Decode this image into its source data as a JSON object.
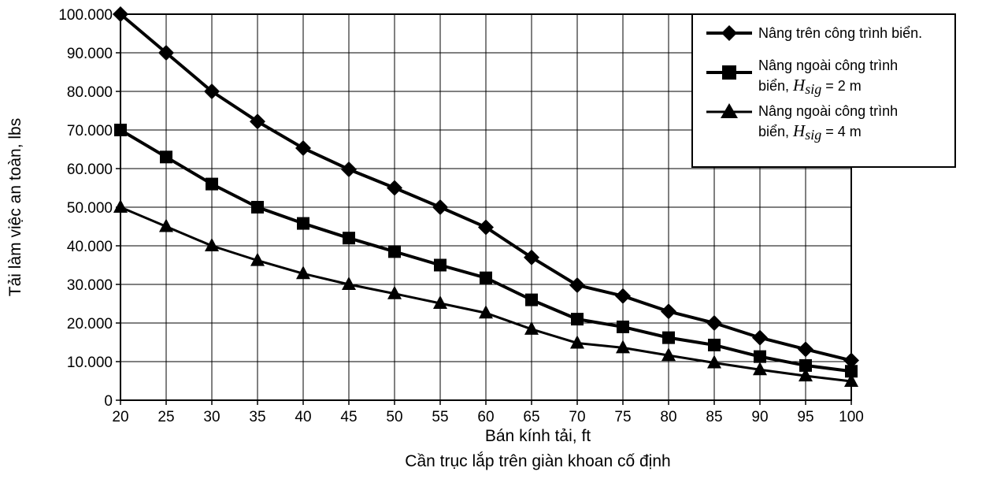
{
  "chart_data": {
    "type": "line",
    "title": "",
    "caption": "Cần trục lắp trên giàn khoan cố định",
    "xlabel": "Bán kính tải, ft",
    "ylabel": "Tải làm việc an toàn, lbs",
    "x": [
      20,
      25,
      30,
      35,
      40,
      45,
      50,
      55,
      60,
      65,
      70,
      75,
      80,
      85,
      90,
      95,
      100
    ],
    "xlim": [
      20,
      100
    ],
    "ylim": [
      0,
      100000
    ],
    "x_ticks": [
      "20",
      "25",
      "30",
      "35",
      "40",
      "45",
      "50",
      "55",
      "60",
      "65",
      "70",
      "75",
      "80",
      "85",
      "90",
      "95",
      "100"
    ],
    "y_ticks": [
      {
        "value": 0,
        "label": "0"
      },
      {
        "value": 10000,
        "label": "10.000"
      },
      {
        "value": 20000,
        "label": "20.000"
      },
      {
        "value": 30000,
        "label": "30.000"
      },
      {
        "value": 40000,
        "label": "40.000"
      },
      {
        "value": 50000,
        "label": "50.000"
      },
      {
        "value": 60000,
        "label": "60.000"
      },
      {
        "value": 70000,
        "label": "70.000"
      },
      {
        "value": 80000,
        "label": "80.000"
      },
      {
        "value": 90000,
        "label": "90.000"
      },
      {
        "value": 100000,
        "label": "100.000"
      }
    ],
    "grid": true,
    "legend_position": "top-right",
    "series": [
      {
        "name": "Nâng trên công trình biển.",
        "marker": "diamond",
        "values": [
          100000,
          90000,
          80000,
          72200,
          65300,
          59800,
          55000,
          50000,
          44800,
          37000,
          29800,
          27000,
          23000,
          20000,
          16200,
          13200,
          10300
        ]
      },
      {
        "name": "Nâng ngoài công trình biển, H_sig = 2 m",
        "legend_lines": [
          "Nâng ngoài công trình",
          "biển, ",
          "H",
          "sig",
          " = 2 m"
        ],
        "marker": "square",
        "values": [
          70000,
          63000,
          56000,
          50000,
          45800,
          42000,
          38500,
          35000,
          31700,
          26000,
          21000,
          19000,
          16200,
          14300,
          11300,
          9000,
          7500
        ]
      },
      {
        "name": "Nâng ngoài công trình biển, H_sig = 4 m",
        "legend_lines": [
          "Nâng ngoài công trình",
          "biển, ",
          "H",
          "sig",
          " = 4 m"
        ],
        "marker": "triangle",
        "values": [
          50000,
          45000,
          40000,
          36200,
          32800,
          30000,
          27600,
          25100,
          22600,
          18400,
          14800,
          13600,
          11600,
          9700,
          7900,
          6300,
          4900
        ]
      }
    ],
    "line_color": "#000000"
  }
}
